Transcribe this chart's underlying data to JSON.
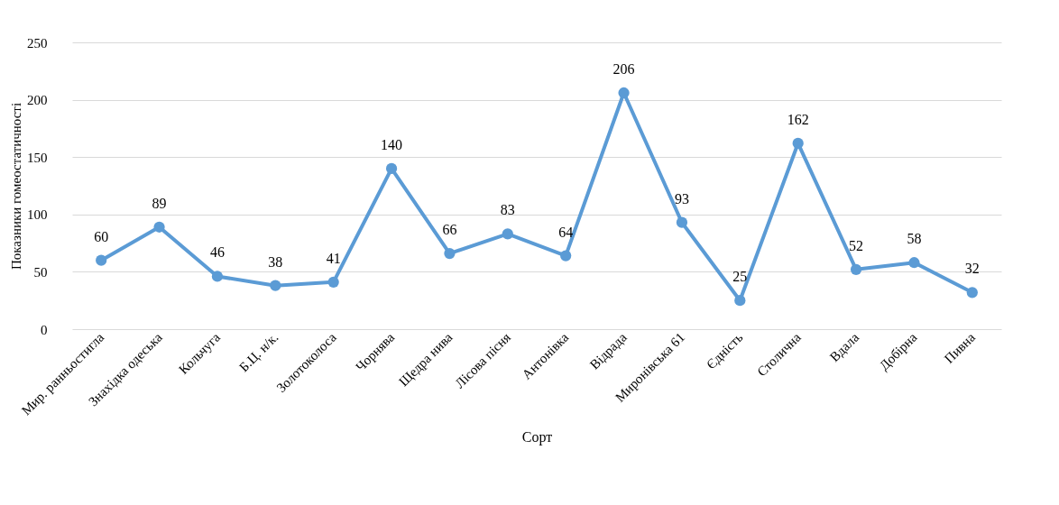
{
  "chart_data": {
    "type": "line",
    "xlabel": "Сорт",
    "ylabel": "Показники гомеостатичності",
    "categories": [
      "Мир. ранньостигла",
      "Знахідка одеська",
      "Кольчуга",
      "Б.Ц. н/к.",
      "Золотоколоса",
      "Чорнява",
      "Щедра нива",
      "Лісова пісня",
      "Антонівка",
      "Відрада",
      "Миронівська 61",
      "Єдність",
      "Столична",
      "Вдала",
      "Добірна",
      "Пивна"
    ],
    "values": [
      60,
      89,
      46,
      38,
      41,
      140,
      66,
      83,
      64,
      206,
      93,
      25,
      162,
      52,
      58,
      32
    ],
    "color": "#5b9bd5",
    "ylim": [
      0,
      250
    ],
    "yticks": [
      0,
      50,
      100,
      150,
      200,
      250
    ],
    "grid": "y",
    "data_labels": true,
    "marker": "circle",
    "line_style": "solid"
  }
}
